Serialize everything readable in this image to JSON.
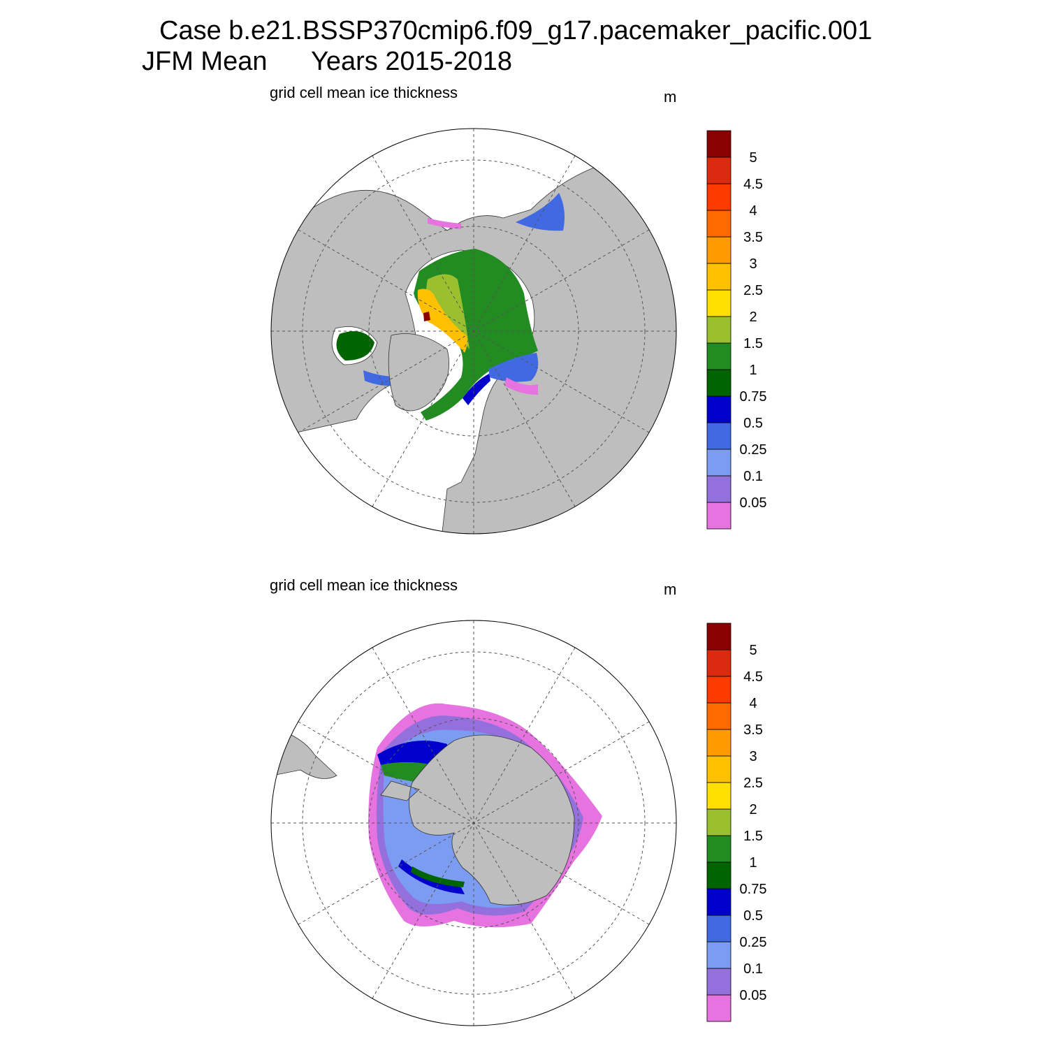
{
  "title": "Case b.e21.BSSP370cmip6.f09_g17.pacemaker_pacific.001",
  "season": "JFM Mean",
  "years": "Years 2015-2018",
  "panels": [
    {
      "label": "grid cell mean ice thickness",
      "units": "m",
      "colorbar": {
        "levels": [
          0.05,
          0.1,
          0.25,
          0.5,
          0.75,
          1,
          1.5,
          2,
          2.5,
          3,
          3.5,
          4,
          4.5,
          5
        ],
        "colors": [
          "#e673e0",
          "#9370db",
          "#7b9cf0",
          "#4169e1",
          "#0000cd",
          "#006400",
          "#228b22",
          "#9ac030",
          "#ffe000",
          "#ffc000",
          "#ff9a00",
          "#ff6a00",
          "#ff3a00",
          "#dc2a10",
          "#8b0000"
        ]
      }
    },
    {
      "label": "grid cell mean ice thickness",
      "units": "m",
      "colorbar": {
        "levels": [
          0.05,
          0.1,
          0.25,
          0.5,
          0.75,
          1,
          1.5,
          2,
          2.5,
          3,
          3.5,
          4,
          4.5,
          5
        ],
        "colors": [
          "#e673e0",
          "#9370db",
          "#7b9cf0",
          "#4169e1",
          "#0000cd",
          "#006400",
          "#228b22",
          "#9ac030",
          "#ffe000",
          "#ffc000",
          "#ff9a00",
          "#ff6a00",
          "#ff3a00",
          "#dc2a10",
          "#8b0000"
        ]
      }
    }
  ]
}
